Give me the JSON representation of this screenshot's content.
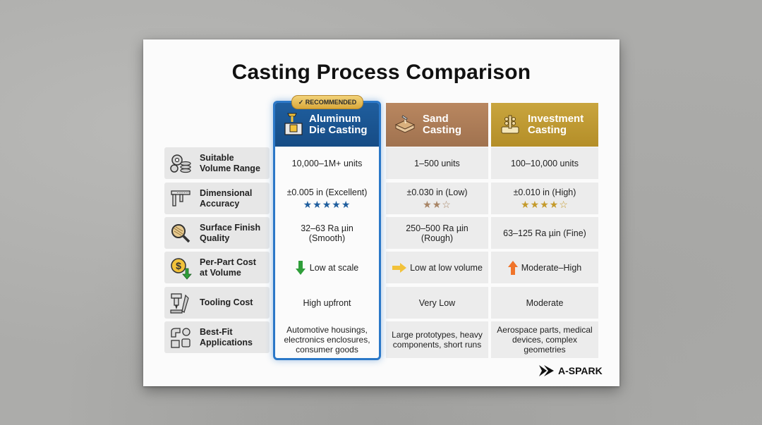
{
  "title": "Casting Process Comparison",
  "badge": "✓ RECOMMENDED",
  "columns": {
    "aluminum": "Aluminum\nDie Casting",
    "sand": "Sand\nCasting",
    "investment": "Investment\nCasting"
  },
  "rows": [
    {
      "label": "Suitable\nVolume Range",
      "icon": "gears-coins-icon",
      "aluminum": "10,000–1M+ units",
      "sand": "1–500 units",
      "investment": "100–10,000 units"
    },
    {
      "label": "Dimensional\nAccuracy",
      "icon": "caliper-icon",
      "aluminum": "±0.005 in (Excellent)",
      "sand": "±0.030 in (Low)",
      "investment": "±0.010 in (High)",
      "aluminum_stars": "★★★★★",
      "sand_stars": "★★☆",
      "investment_stars": "★★★★☆",
      "aluminum_rating": 5,
      "sand_rating": 2,
      "investment_rating": 4
    },
    {
      "label": "Surface Finish\nQuality",
      "icon": "magnifier-icon",
      "aluminum": "32–63 Ra µin\n(Smooth)",
      "sand": "250–500 Ra µin\n(Rough)",
      "investment": "63–125 Ra µin (Fine)"
    },
    {
      "label": "Per-Part Cost\nat Volume",
      "icon": "dollar-down-icon",
      "aluminum": "Low at scale",
      "sand": "Low at low volume",
      "investment": "Moderate–High"
    },
    {
      "label": "Tooling Cost",
      "icon": "tooling-icon",
      "aluminum": "High upfront",
      "sand": "Very Low",
      "investment": "Moderate"
    },
    {
      "label": "Best-Fit\nApplications",
      "icon": "parts-icon",
      "aluminum": "Automotive housings,\nelectronics enclosures,\nconsumer goods",
      "sand": "Large prototypes, heavy\ncomponents, short runs",
      "investment": "Aerospace parts, medical\ndevices, complex\ngeometries"
    }
  ],
  "brand": "A-SPARK",
  "colors": {
    "aluminum": "#1f5e9e",
    "sand": "#a0724f",
    "investment": "#b48e28",
    "star_blue": "#1f5e9e",
    "star_tan": "#a88566",
    "star_gold": "#c49a2a"
  }
}
